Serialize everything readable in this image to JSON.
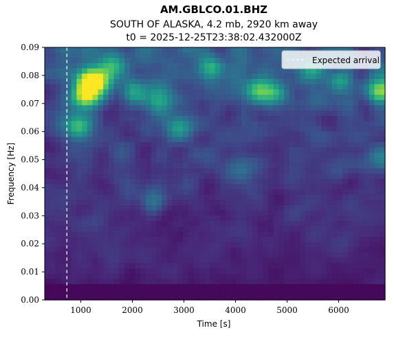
{
  "chart_data": {
    "type": "heatmap",
    "title": "AM.GBLCO.01.BHZ",
    "subtitle_line1": "SOUTH OF ALASKA, 4.2 mb, 2920 km away",
    "subtitle_line2": "t0 = 2025-12-25T23:38:02.432000Z",
    "xlabel": "Time [s]",
    "ylabel": "Frequency [Hz]",
    "xlim": [
      300,
      6900
    ],
    "ylim": [
      0.0,
      0.09
    ],
    "x_ticks": [
      1000,
      2000,
      3000,
      4000,
      5000,
      6000
    ],
    "x_tick_labels": [
      "1000",
      "2000",
      "3000",
      "4000",
      "5000",
      "6000"
    ],
    "y_ticks": [
      0.0,
      0.01,
      0.02,
      0.03,
      0.04,
      0.05,
      0.06,
      0.07,
      0.08,
      0.09
    ],
    "y_tick_labels": [
      "0.00",
      "0.01",
      "0.02",
      "0.03",
      "0.04",
      "0.05",
      "0.06",
      "0.07",
      "0.08",
      "0.09"
    ],
    "colormap": "viridis",
    "colors": {
      "low": "#440154",
      "mid": "#3b528b",
      "teal": "#21918c",
      "green": "#5ec962",
      "high": "#fde725"
    },
    "legend": {
      "position": "top-right",
      "entries": [
        {
          "label": "Expected arrival",
          "style": "dashed",
          "color": "#ffffff"
        }
      ]
    },
    "expected_arrival_time": 730,
    "hotspots": [
      {
        "time": 1150,
        "freq": 0.0785,
        "intensity": 0.95
      },
      {
        "time": 1080,
        "freq": 0.0725,
        "intensity": 0.9
      },
      {
        "time": 1400,
        "freq": 0.0775,
        "intensity": 0.6
      },
      {
        "time": 950,
        "freq": 0.062,
        "intensity": 0.55
      },
      {
        "time": 1600,
        "freq": 0.0835,
        "intensity": 0.55
      },
      {
        "time": 2050,
        "freq": 0.0745,
        "intensity": 0.4
      },
      {
        "time": 2500,
        "freq": 0.0705,
        "intensity": 0.4
      },
      {
        "time": 2950,
        "freq": 0.061,
        "intensity": 0.45
      },
      {
        "time": 3500,
        "freq": 0.0825,
        "intensity": 0.5
      },
      {
        "time": 4450,
        "freq": 0.0755,
        "intensity": 0.6
      },
      {
        "time": 4750,
        "freq": 0.0735,
        "intensity": 0.45
      },
      {
        "time": 5450,
        "freq": 0.0815,
        "intensity": 0.4
      },
      {
        "time": 6050,
        "freq": 0.0775,
        "intensity": 0.4
      },
      {
        "time": 6800,
        "freq": 0.074,
        "intensity": 0.75
      },
      {
        "time": 6850,
        "freq": 0.05,
        "intensity": 0.45
      },
      {
        "time": 4100,
        "freq": 0.045,
        "intensity": 0.3
      },
      {
        "time": 2400,
        "freq": 0.035,
        "intensity": 0.3
      }
    ]
  }
}
